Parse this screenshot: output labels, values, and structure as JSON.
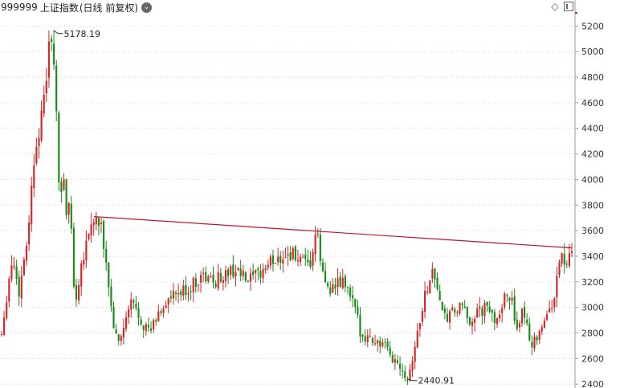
{
  "header": {
    "code": "999999",
    "name": "上证指数",
    "sub": "(日线 前复权)",
    "dropdown_icon": "chevron-down-icon"
  },
  "tools": [
    {
      "name": "diamond-icon",
      "glyph": "◇"
    },
    {
      "name": "panel-toggle-icon",
      "glyph": ""
    }
  ],
  "colors": {
    "up": "#d62728",
    "down": "#1a8a1a",
    "trendline": "#c8102e",
    "grid": "#d0d0d0",
    "axis": "#999999"
  },
  "chart_data": {
    "type": "candlestick",
    "title": "",
    "xlabel": "",
    "ylabel": "",
    "ylim": [
      2370,
      5290
    ],
    "yticks": [
      2400,
      2600,
      2800,
      3000,
      3200,
      3400,
      3600,
      3800,
      4000,
      4200,
      4400,
      4600,
      4800,
      5000,
      5200
    ],
    "grid": true,
    "x_range": [
      0,
      1
    ],
    "price_path": [
      [
        0.0,
        2800
      ],
      [
        0.012,
        3200
      ],
      [
        0.02,
        3400
      ],
      [
        0.03,
        3100
      ],
      [
        0.045,
        3550
      ],
      [
        0.06,
        4300
      ],
      [
        0.072,
        4500
      ],
      [
        0.08,
        4900
      ],
      [
        0.088,
        5178.19
      ],
      [
        0.095,
        4600
      ],
      [
        0.102,
        3800
      ],
      [
        0.108,
        4100
      ],
      [
        0.114,
        3650
      ],
      [
        0.12,
        3900
      ],
      [
        0.128,
        3000
      ],
      [
        0.138,
        3300
      ],
      [
        0.15,
        3550
      ],
      [
        0.162,
        3700
      ],
      [
        0.175,
        3600
      ],
      [
        0.185,
        3300
      ],
      [
        0.193,
        2950
      ],
      [
        0.203,
        2700
      ],
      [
        0.215,
        2850
      ],
      [
        0.228,
        3050
      ],
      [
        0.245,
        2900
      ],
      [
        0.26,
        2800
      ],
      [
        0.275,
        2950
      ],
      [
        0.29,
        3050
      ],
      [
        0.31,
        3100
      ],
      [
        0.33,
        3150
      ],
      [
        0.35,
        3250
      ],
      [
        0.37,
        3200
      ],
      [
        0.39,
        3250
      ],
      [
        0.41,
        3300
      ],
      [
        0.43,
        3200
      ],
      [
        0.45,
        3250
      ],
      [
        0.47,
        3350
      ],
      [
        0.49,
        3400
      ],
      [
        0.51,
        3420
      ],
      [
        0.525,
        3350
      ],
      [
        0.54,
        3300
      ],
      [
        0.552,
        3600
      ],
      [
        0.565,
        3200
      ],
      [
        0.58,
        3150
      ],
      [
        0.6,
        3200
      ],
      [
        0.615,
        3050
      ],
      [
        0.63,
        2800
      ],
      [
        0.65,
        2750
      ],
      [
        0.67,
        2700
      ],
      [
        0.685,
        2600
      ],
      [
        0.7,
        2550
      ],
      [
        0.712,
        2440.91
      ],
      [
        0.725,
        2700
      ],
      [
        0.74,
        3050
      ],
      [
        0.755,
        3300
      ],
      [
        0.765,
        3150
      ],
      [
        0.775,
        2900
      ],
      [
        0.79,
        2950
      ],
      [
        0.805,
        3000
      ],
      [
        0.82,
        2900
      ],
      [
        0.835,
        2950
      ],
      [
        0.85,
        3000
      ],
      [
        0.865,
        2900
      ],
      [
        0.88,
        3050
      ],
      [
        0.895,
        3100
      ],
      [
        0.905,
        2750
      ],
      [
        0.915,
        3000
      ],
      [
        0.93,
        2700
      ],
      [
        0.945,
        2850
      ],
      [
        0.96,
        2950
      ],
      [
        0.972,
        3150
      ],
      [
        0.982,
        3450
      ],
      [
        0.99,
        3300
      ],
      [
        1.0,
        3420
      ]
    ],
    "candle_count": 230,
    "trendline": {
      "from": [
        0.162,
        3710
      ],
      "to": [
        1.0,
        3465
      ]
    },
    "annotations": [
      {
        "text": "5178.19",
        "x": 0.088,
        "value": 5178.19,
        "side": "top"
      },
      {
        "text": "2440.91",
        "x": 0.712,
        "value": 2440.91,
        "side": "bottom"
      }
    ]
  }
}
